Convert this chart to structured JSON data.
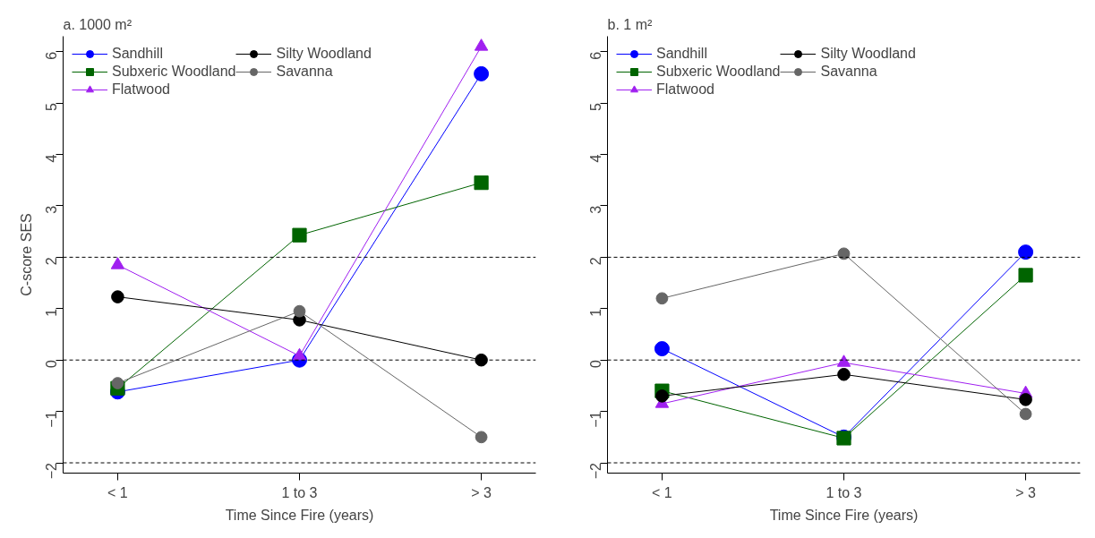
{
  "chart_data": [
    {
      "type": "line",
      "title": "a. 1000 m²",
      "xlabel": "Time Since Fire (years)",
      "ylabel": "C-score SES",
      "categories": [
        "< 1",
        "1 to 3",
        "> 3"
      ],
      "ylim": [
        -2.2,
        6.3
      ],
      "yticks": [
        -2,
        -1,
        0,
        1,
        2,
        3,
        4,
        5,
        6
      ],
      "grid": false,
      "legend": "top left",
      "ref_lines": [
        {
          "axis": "y",
          "value": -2,
          "line_style": "dashed",
          "color": "#000000"
        },
        {
          "axis": "y",
          "value": 0,
          "line_style": "dashed",
          "color": "#000000"
        },
        {
          "axis": "y",
          "value": 2,
          "line_style": "dashed",
          "color": "#000000"
        }
      ],
      "series": [
        {
          "name": "Sandhill",
          "color": "#0000ff",
          "marker": "circle",
          "values": [
            -0.62,
            0.0,
            5.57
          ]
        },
        {
          "name": "Subxeric Woodland",
          "color": "#006400",
          "marker": "square",
          "values": [
            -0.55,
            2.43,
            3.45
          ]
        },
        {
          "name": "Flatwood",
          "color": "#a020f0",
          "marker": "triangle",
          "values": [
            1.85,
            0.08,
            6.1
          ]
        },
        {
          "name": "Silty Woodland",
          "color": "#000000",
          "marker": "circle",
          "values": [
            1.23,
            0.78,
            0.0
          ]
        },
        {
          "name": "Savanna",
          "color": "#666666",
          "marker": "circle",
          "values": [
            -0.45,
            0.95,
            -1.5
          ]
        }
      ]
    },
    {
      "type": "line",
      "title": "b. 1 m²",
      "xlabel": "Time Since Fire (years)",
      "categories": [
        "< 1",
        "1 to 3",
        "> 3"
      ],
      "ylim": [
        -2.2,
        6.3
      ],
      "yticks": [
        -2,
        -1,
        0,
        1,
        2,
        3,
        4,
        5,
        6
      ],
      "grid": false,
      "legend": "top left",
      "ref_lines": [
        {
          "axis": "y",
          "value": -2,
          "line_style": "dashed",
          "color": "#000000"
        },
        {
          "axis": "y",
          "value": 0,
          "line_style": "dashed",
          "color": "#000000"
        },
        {
          "axis": "y",
          "value": 2,
          "line_style": "dashed",
          "color": "#000000"
        }
      ],
      "series": [
        {
          "name": "Sandhill",
          "color": "#0000ff",
          "marker": "circle",
          "values": [
            0.22,
            -1.5,
            2.1
          ]
        },
        {
          "name": "Subxeric Woodland",
          "color": "#006400",
          "marker": "square",
          "values": [
            -0.6,
            -1.52,
            1.65
          ]
        },
        {
          "name": "Flatwood",
          "color": "#a020f0",
          "marker": "triangle",
          "values": [
            -0.85,
            -0.05,
            -0.65
          ]
        },
        {
          "name": "Silty Woodland",
          "color": "#000000",
          "marker": "circle",
          "values": [
            -0.7,
            -0.28,
            -0.77
          ]
        },
        {
          "name": "Savanna",
          "color": "#666666",
          "marker": "circle",
          "values": [
            1.2,
            2.07,
            -1.05
          ]
        }
      ]
    }
  ]
}
